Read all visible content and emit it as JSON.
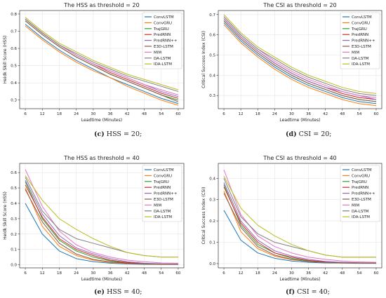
{
  "series_names": [
    "ConvLSTM",
    "ConvGRU",
    "TrajGRU",
    "PredRNN",
    "PredRNN++",
    "E3D-LSTM",
    "MIM",
    "DA-LSTM",
    "IDA-LSTM"
  ],
  "series_colors": [
    "#1f77b4",
    "#ff7f0e",
    "#2ca02c",
    "#d62728",
    "#9467bd",
    "#8c564b",
    "#e377c2",
    "#7f7f7f",
    "#bcbd22"
  ],
  "captions": [
    {
      "letter": "(c)",
      "text": " HSS = 20;"
    },
    {
      "letter": "(d)",
      "text": " CSI = 20;"
    },
    {
      "letter": "(e)",
      "text": " HSS = 40;"
    },
    {
      "letter": "(f)",
      "text": " CSI = 40;"
    }
  ],
  "chart_data": [
    {
      "type": "line",
      "title": "The HSS as threshold = 20",
      "xlabel": "Leadtime (Minutes)",
      "ylabel": "Heidk Skill Score (HSS)",
      "x": [
        6,
        12,
        18,
        24,
        30,
        36,
        42,
        48,
        54,
        60
      ],
      "xlim": [
        4,
        62
      ],
      "ylim": [
        0.25,
        0.82
      ],
      "yticks": [
        "0.3",
        "0.4",
        "0.5",
        "0.6",
        "0.7",
        "0.8"
      ],
      "grid": true,
      "legend": "upper right",
      "series": [
        {
          "name": "ConvLSTM",
          "values": [
            0.74,
            0.66,
            0.59,
            0.53,
            0.48,
            0.43,
            0.39,
            0.35,
            0.31,
            0.28
          ]
        },
        {
          "name": "ConvGRU",
          "values": [
            0.73,
            0.65,
            0.58,
            0.52,
            0.47,
            0.43,
            0.38,
            0.34,
            0.3,
            0.27
          ]
        },
        {
          "name": "TrajGRU",
          "values": [
            0.76,
            0.68,
            0.61,
            0.55,
            0.5,
            0.45,
            0.41,
            0.37,
            0.33,
            0.3
          ]
        },
        {
          "name": "PredRNN",
          "values": [
            0.77,
            0.69,
            0.62,
            0.56,
            0.51,
            0.46,
            0.42,
            0.38,
            0.34,
            0.31
          ]
        },
        {
          "name": "PredRNN++",
          "values": [
            0.77,
            0.69,
            0.62,
            0.56,
            0.51,
            0.47,
            0.43,
            0.39,
            0.35,
            0.32
          ]
        },
        {
          "name": "E3D-LSTM",
          "values": [
            0.76,
            0.68,
            0.61,
            0.55,
            0.5,
            0.45,
            0.41,
            0.37,
            0.33,
            0.29
          ]
        },
        {
          "name": "MIM",
          "values": [
            0.77,
            0.69,
            0.62,
            0.56,
            0.51,
            0.47,
            0.43,
            0.39,
            0.36,
            0.33
          ]
        },
        {
          "name": "DA-LSTM",
          "values": [
            0.77,
            0.69,
            0.62,
            0.57,
            0.52,
            0.48,
            0.44,
            0.41,
            0.38,
            0.35
          ]
        },
        {
          "name": "IDA-LSTM",
          "values": [
            0.78,
            0.7,
            0.63,
            0.58,
            0.53,
            0.49,
            0.45,
            0.42,
            0.39,
            0.36
          ]
        }
      ]
    },
    {
      "type": "line",
      "title": "The CSI as threshold = 20",
      "xlabel": "Leadtime (Minutes)",
      "ylabel": "Critical Success Index (CSI)",
      "x": [
        6,
        12,
        18,
        24,
        30,
        36,
        42,
        48,
        54,
        60
      ],
      "xlim": [
        4,
        62
      ],
      "ylim": [
        0.235,
        0.72
      ],
      "yticks": [
        "0.3",
        "0.4",
        "0.5",
        "0.6",
        "0.7"
      ],
      "grid": true,
      "legend": "upper right",
      "series": [
        {
          "name": "ConvLSTM",
          "values": [
            0.66,
            0.57,
            0.5,
            0.44,
            0.39,
            0.35,
            0.32,
            0.29,
            0.27,
            0.26
          ]
        },
        {
          "name": "ConvGRU",
          "values": [
            0.65,
            0.56,
            0.49,
            0.43,
            0.38,
            0.34,
            0.31,
            0.28,
            0.26,
            0.25
          ]
        },
        {
          "name": "TrajGRU",
          "values": [
            0.67,
            0.58,
            0.51,
            0.45,
            0.4,
            0.36,
            0.33,
            0.3,
            0.28,
            0.27
          ]
        },
        {
          "name": "PredRNN",
          "values": [
            0.68,
            0.59,
            0.52,
            0.46,
            0.41,
            0.37,
            0.34,
            0.31,
            0.29,
            0.28
          ]
        },
        {
          "name": "PredRNN++",
          "values": [
            0.68,
            0.59,
            0.52,
            0.46,
            0.41,
            0.37,
            0.34,
            0.32,
            0.3,
            0.28
          ]
        },
        {
          "name": "E3D-LSTM",
          "values": [
            0.67,
            0.58,
            0.51,
            0.45,
            0.4,
            0.36,
            0.33,
            0.3,
            0.28,
            0.27
          ]
        },
        {
          "name": "MIM",
          "values": [
            0.69,
            0.6,
            0.53,
            0.47,
            0.42,
            0.38,
            0.35,
            0.32,
            0.3,
            0.29
          ]
        },
        {
          "name": "DA-LSTM",
          "values": [
            0.69,
            0.6,
            0.53,
            0.48,
            0.43,
            0.39,
            0.36,
            0.33,
            0.31,
            0.3
          ]
        },
        {
          "name": "IDA-LSTM",
          "values": [
            0.7,
            0.61,
            0.54,
            0.49,
            0.44,
            0.4,
            0.37,
            0.34,
            0.32,
            0.31
          ]
        }
      ]
    },
    {
      "type": "line",
      "title": "The HSS as threshold = 40",
      "xlabel": "Leadtime (Minutes)",
      "ylabel": "Heidk Skill Score (HSS)",
      "x": [
        6,
        12,
        18,
        24,
        30,
        36,
        42,
        48,
        54,
        60
      ],
      "xlim": [
        4,
        62
      ],
      "ylim": [
        -0.02,
        0.66
      ],
      "yticks": [
        "0.0",
        "0.1",
        "0.2",
        "0.3",
        "0.4",
        "0.5",
        "0.6"
      ],
      "grid": true,
      "legend": "upper right",
      "series": [
        {
          "name": "ConvLSTM",
          "values": [
            0.4,
            0.2,
            0.09,
            0.04,
            0.02,
            0.01,
            0.005,
            0.003,
            0.002,
            0.002
          ]
        },
        {
          "name": "ConvGRU",
          "values": [
            0.5,
            0.25,
            0.12,
            0.06,
            0.03,
            0.015,
            0.008,
            0.005,
            0.003,
            0.002
          ]
        },
        {
          "name": "TrajGRU",
          "values": [
            0.54,
            0.3,
            0.16,
            0.09,
            0.05,
            0.025,
            0.012,
            0.007,
            0.004,
            0.003
          ]
        },
        {
          "name": "PredRNN",
          "values": [
            0.52,
            0.31,
            0.17,
            0.1,
            0.06,
            0.03,
            0.015,
            0.008,
            0.005,
            0.004
          ]
        },
        {
          "name": "PredRNN++",
          "values": [
            0.55,
            0.33,
            0.19,
            0.11,
            0.07,
            0.04,
            0.02,
            0.01,
            0.006,
            0.005
          ]
        },
        {
          "name": "E3D-LSTM",
          "values": [
            0.49,
            0.28,
            0.14,
            0.07,
            0.035,
            0.018,
            0.01,
            0.006,
            0.004,
            0.003
          ]
        },
        {
          "name": "MIM",
          "values": [
            0.62,
            0.38,
            0.22,
            0.13,
            0.08,
            0.05,
            0.03,
            0.02,
            0.012,
            0.01
          ]
        },
        {
          "name": "DA-LSTM",
          "values": [
            0.57,
            0.35,
            0.23,
            0.17,
            0.14,
            0.11,
            0.08,
            0.06,
            0.05,
            0.05
          ]
        },
        {
          "name": "IDA-LSTM",
          "values": [
            0.58,
            0.42,
            0.3,
            0.23,
            0.17,
            0.12,
            0.08,
            0.06,
            0.05,
            0.05
          ]
        }
      ]
    },
    {
      "type": "line",
      "title": "The CSI as threshold = 40",
      "xlabel": "Leadtime (Minutes)",
      "ylabel": "Critical Success Index (CSI)",
      "x": [
        6,
        12,
        18,
        24,
        30,
        36,
        42,
        48,
        54,
        60
      ],
      "xlim": [
        4,
        62
      ],
      "ylim": [
        -0.02,
        0.47
      ],
      "yticks": [
        "0.0",
        "0.1",
        "0.2",
        "0.3",
        "0.4"
      ],
      "grid": true,
      "legend": "upper right",
      "series": [
        {
          "name": "ConvLSTM",
          "values": [
            0.25,
            0.11,
            0.05,
            0.025,
            0.012,
            0.006,
            0.003,
            0.002,
            0.001,
            0.001
          ]
        },
        {
          "name": "ConvGRU",
          "values": [
            0.34,
            0.15,
            0.07,
            0.035,
            0.018,
            0.01,
            0.005,
            0.003,
            0.002,
            0.002
          ]
        },
        {
          "name": "TrajGRU",
          "values": [
            0.37,
            0.18,
            0.09,
            0.05,
            0.025,
            0.013,
            0.007,
            0.004,
            0.003,
            0.002
          ]
        },
        {
          "name": "PredRNN",
          "values": [
            0.36,
            0.19,
            0.1,
            0.05,
            0.03,
            0.015,
            0.008,
            0.005,
            0.003,
            0.002
          ]
        },
        {
          "name": "PredRNN++",
          "values": [
            0.38,
            0.2,
            0.11,
            0.06,
            0.035,
            0.02,
            0.01,
            0.006,
            0.004,
            0.003
          ]
        },
        {
          "name": "E3D-LSTM",
          "values": [
            0.33,
            0.17,
            0.08,
            0.04,
            0.02,
            0.01,
            0.006,
            0.004,
            0.003,
            0.002
          ]
        },
        {
          "name": "MIM",
          "values": [
            0.44,
            0.23,
            0.13,
            0.08,
            0.05,
            0.03,
            0.02,
            0.012,
            0.008,
            0.006
          ]
        },
        {
          "name": "DA-LSTM",
          "values": [
            0.4,
            0.22,
            0.14,
            0.1,
            0.08,
            0.06,
            0.04,
            0.03,
            0.03,
            0.03
          ]
        },
        {
          "name": "IDA-LSTM",
          "values": [
            0.41,
            0.26,
            0.18,
            0.13,
            0.09,
            0.06,
            0.04,
            0.03,
            0.03,
            0.03
          ]
        }
      ]
    }
  ]
}
